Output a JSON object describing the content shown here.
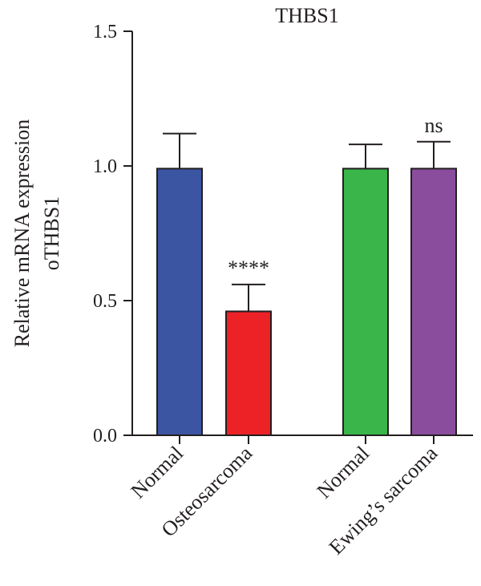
{
  "chart_data": {
    "type": "bar",
    "title": "THBS1",
    "ylabel_lines": [
      "Relative mRNA expression",
      "oTHBS1"
    ],
    "xlabel": "",
    "ylim": [
      0,
      1.5
    ],
    "yticks": [
      "0.0",
      "0.5",
      "1.0",
      "1.5"
    ],
    "grid": false,
    "categories": [
      "Normal",
      "Osteosarcoma",
      "Normal",
      "Ewing’s sarcoma"
    ],
    "values": [
      0.99,
      0.46,
      0.99,
      0.99
    ],
    "errors": [
      0.13,
      0.1,
      0.09,
      0.1
    ],
    "colors": [
      "#3b55a3",
      "#ec2227",
      "#39b54a",
      "#8a4d9e"
    ],
    "annotations": [
      "",
      "****",
      "",
      "ns"
    ]
  }
}
